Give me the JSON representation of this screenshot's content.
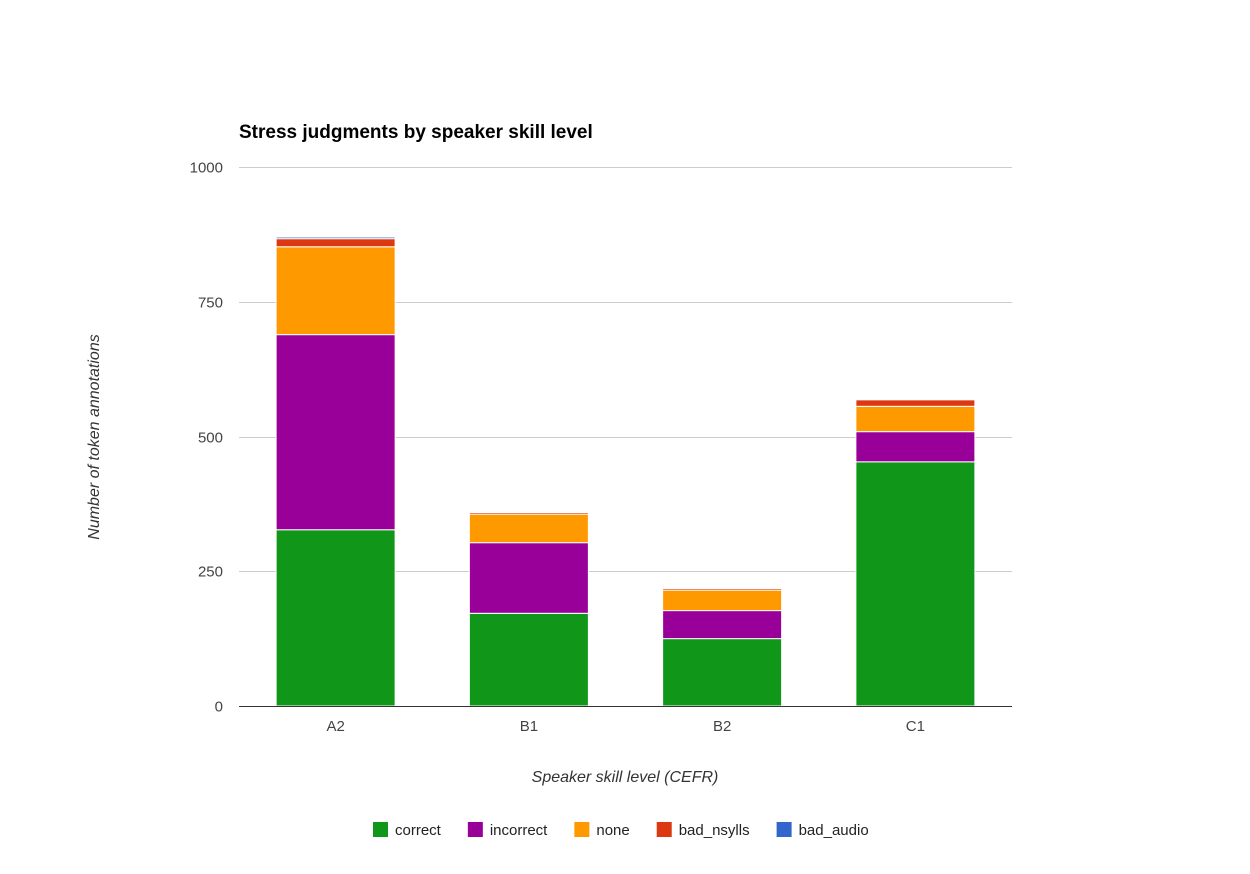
{
  "chart_data": {
    "type": "bar",
    "stacked": true,
    "title": "Stress judgments by speaker skill level",
    "xlabel": "Speaker skill level (CEFR)",
    "ylabel": "Number of token annotations",
    "categories": [
      "A2",
      "B1",
      "B2",
      "C1"
    ],
    "ylim": [
      0,
      1000
    ],
    "yticks": [
      0,
      250,
      500,
      750,
      1000
    ],
    "grid": true,
    "legend_position": "bottom",
    "series": [
      {
        "name": "correct",
        "color": "#109618",
        "values": [
          327,
          172,
          125,
          453
        ]
      },
      {
        "name": "incorrect",
        "color": "#990099",
        "values": [
          362,
          131,
          52,
          56
        ]
      },
      {
        "name": "none",
        "color": "#ff9900",
        "values": [
          163,
          53,
          38,
          47
        ]
      },
      {
        "name": "bad_nsylls",
        "color": "#dc3912",
        "values": [
          15,
          3,
          3,
          12
        ]
      },
      {
        "name": "bad_audio",
        "color": "#3366cc",
        "values": [
          3,
          1,
          0,
          0
        ]
      }
    ]
  }
}
